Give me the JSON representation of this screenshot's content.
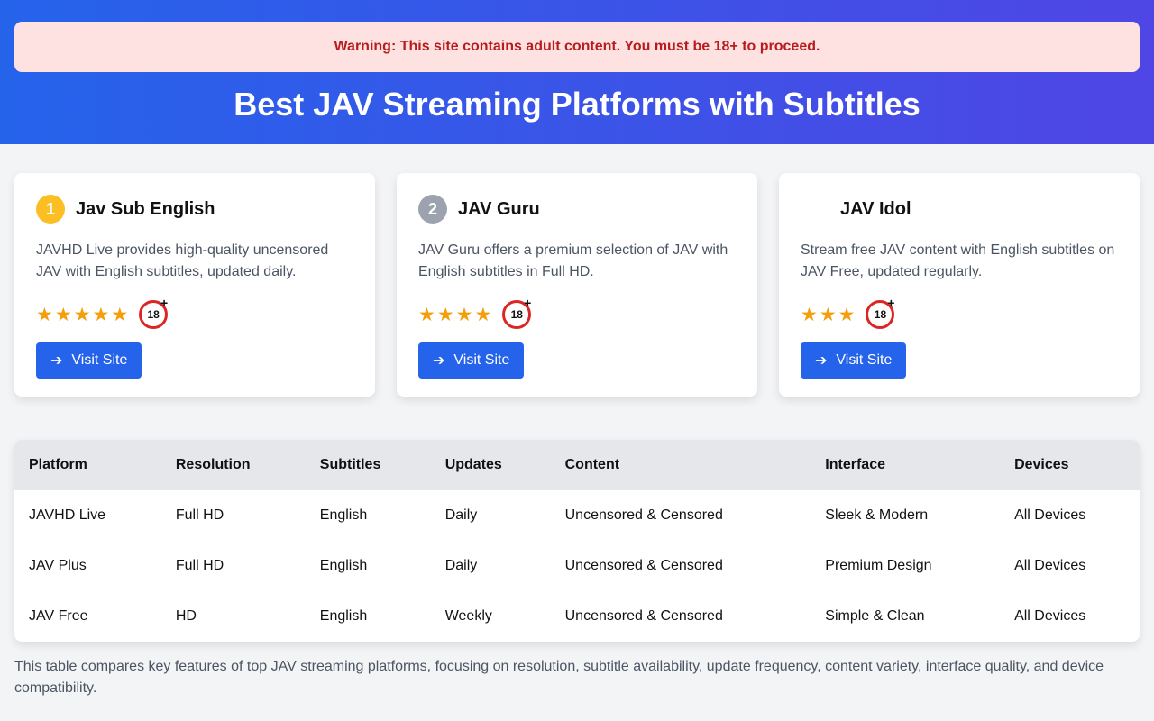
{
  "warning": "Warning: This site contains adult content. You must be 18+ to proceed.",
  "title": "Best JAV Streaming Platforms with Subtitles",
  "cards": [
    {
      "rank": "1",
      "badge_color": "#fbbf24",
      "name": "Jav Sub English",
      "desc": "JAVHD Live provides high-quality uncensored JAV with English subtitles, updated daily.",
      "stars": 5,
      "age": "18",
      "button": "Visit Site"
    },
    {
      "rank": "2",
      "badge_color": "#9ca3af",
      "name": "JAV Guru",
      "desc": "JAV Guru offers a premium selection of JAV with English subtitles in Full HD.",
      "stars": 4,
      "age": "18",
      "button": "Visit Site"
    },
    {
      "rank": "",
      "badge_color": "#ffffff",
      "name": "JAV Idol",
      "desc": "Stream free JAV content with English subtitles on JAV Free, updated regularly.",
      "stars": 3,
      "age": "18",
      "button": "Visit Site"
    }
  ],
  "table": {
    "headers": [
      "Platform",
      "Resolution",
      "Subtitles",
      "Updates",
      "Content",
      "Interface",
      "Devices"
    ],
    "rows": [
      [
        "JAVHD Live",
        "Full HD",
        "English",
        "Daily",
        "Uncensored & Censored",
        "Sleek & Modern",
        "All Devices"
      ],
      [
        "JAV Plus",
        "Full HD",
        "English",
        "Daily",
        "Uncensored & Censored",
        "Premium Design",
        "All Devices"
      ],
      [
        "JAV Free",
        "HD",
        "English",
        "Weekly",
        "Uncensored & Censored",
        "Simple & Clean",
        "All Devices"
      ]
    ]
  },
  "caption": "This table compares key features of top JAV streaming platforms, focusing on resolution, subtitle availability, update frequency, content variety, interface quality, and device compatibility."
}
